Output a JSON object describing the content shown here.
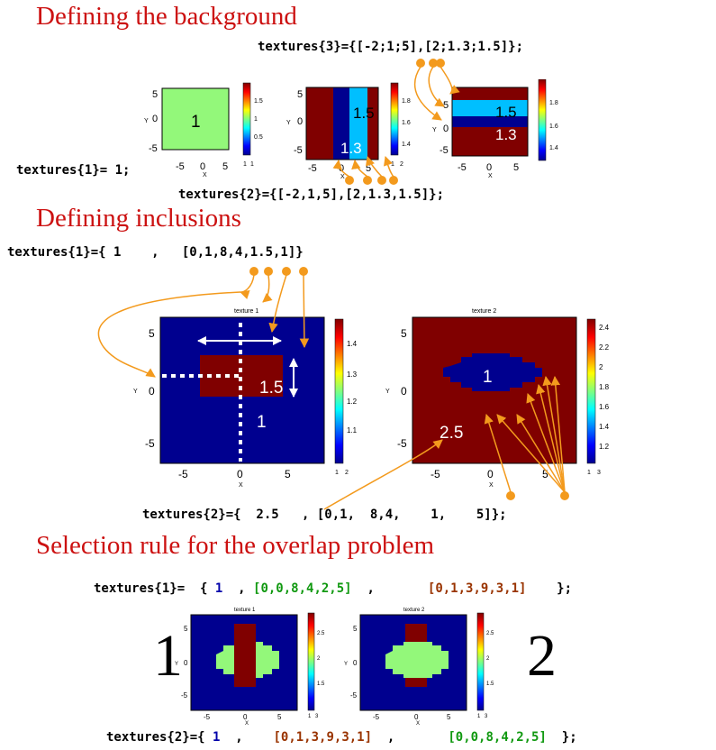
{
  "section1": {
    "heading": "Defining the background",
    "code_top": "textures{3}={[-2;1;5],[2;1.3;1.5]};",
    "code_left": "textures{1}= 1;",
    "code_bottom": "textures{2}={[-2,1,5],[2,1.3,1.5]};",
    "plot_a": {
      "value_label": "1",
      "ticks": [
        "5",
        "0",
        "-5",
        "-5",
        "0",
        "5"
      ],
      "ylabel": "Y",
      "xlabel": "X",
      "colorbar": [
        "1.5",
        "1",
        "0.5"
      ],
      "cb_ends": [
        "1",
        "1"
      ]
    },
    "plot_b": {
      "value_labels": [
        "1.5",
        "1.3"
      ],
      "ticks": [
        "5",
        "0",
        "-5",
        "-5",
        "0",
        "5"
      ],
      "ylabel": "Y",
      "xlabel": "X",
      "colorbar": [
        "1.8",
        "1.6",
        "1.4"
      ],
      "cb_ends": [
        "1",
        "2"
      ]
    },
    "plot_c": {
      "value_labels": [
        "1.5",
        "1.3"
      ],
      "ticks": [
        "5",
        "0",
        "-5",
        "-5",
        "0",
        "5"
      ],
      "ylabel": "Y",
      "xlabel": "X",
      "colorbar": [
        "1.8",
        "1.6",
        "1.4"
      ],
      "cb_ends": []
    }
  },
  "section2": {
    "heading": "Defining inclusions",
    "code_top": "textures{1}={ 1    ,   [0,1,8,4,1.5,1]}",
    "code_bottom": "textures{2}={  2.5   , [0,1,  8,4,    1,    5]};",
    "plot_a": {
      "title": "texture 1",
      "labels": [
        "1.5",
        "1"
      ],
      "ticks": [
        "5",
        "0",
        "-5",
        "-5",
        "0",
        "5"
      ],
      "ylabel": "Y",
      "xlabel": "X",
      "colorbar": [
        "1.4",
        "1.3",
        "1.2",
        "1.1"
      ],
      "cb_ends": [
        "1",
        "2"
      ]
    },
    "plot_b": {
      "title": "texture 2",
      "labels": [
        "1",
        "2.5"
      ],
      "ticks": [
        "5",
        "0",
        "-5",
        "-5",
        "0",
        "5"
      ],
      "ylabel": "Y",
      "xlabel": "X",
      "colorbar": [
        "2.4",
        "2.2",
        "2",
        "1.8",
        "1.6",
        "1.4",
        "1.2"
      ],
      "cb_ends": [
        "1",
        "3"
      ]
    }
  },
  "section3": {
    "heading": "Selection rule for the overlap problem",
    "code_top": {
      "prefix": "textures{1}=  { ",
      "v1": "1",
      "sep1": "  , ",
      "v2": "[0,0,8,4,2,5]",
      "sep2": "  ,       ",
      "v3": "[0,1,3,9,3,1]",
      "end": "    };"
    },
    "code_bottom": {
      "prefix": "textures{2}={ ",
      "v1": "1",
      "sep1": "  ,    ",
      "v2": "[0,1,3,9,3,1]",
      "sep2": "  ,       ",
      "v3": "[0,0,8,4,2,5]",
      "end": "  };"
    },
    "big_left": "1",
    "big_right": "2",
    "plot_a": {
      "title": "texture 1",
      "ticks": [
        "5",
        "0",
        "-5",
        "-5",
        "0",
        "5"
      ],
      "ylabel": "Y",
      "xlabel": "X",
      "colorbar": [
        "2.5",
        "2",
        "1.5"
      ],
      "cb_ends": [
        "1",
        "3"
      ]
    },
    "plot_b": {
      "title": "texture 2",
      "ticks": [
        "5",
        "0",
        "-5",
        "-5",
        "0",
        "5"
      ],
      "ylabel": "Y",
      "xlabel": "X",
      "colorbar": [
        "2.5",
        "2",
        "1.5"
      ],
      "cb_ends": [
        "1",
        "3"
      ]
    }
  },
  "colors": {
    "heading": "#cc1111",
    "navy": "#00008f",
    "darkred": "#800000",
    "lightgreen": "#93f87a",
    "cyan": "#00bfff",
    "orange": "#f39a1d",
    "blue_code": "#0000aa",
    "green_code": "#119911",
    "brown_code": "#993300"
  }
}
